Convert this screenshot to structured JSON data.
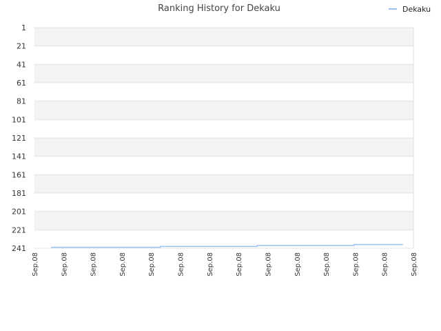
{
  "chart_data": {
    "type": "line",
    "title": "Ranking History for Dekaku",
    "xlabel": "",
    "ylabel": "",
    "y_inverted": true,
    "ylim": [
      1,
      241
    ],
    "y_ticks": [
      1,
      21,
      41,
      61,
      81,
      101,
      121,
      141,
      161,
      181,
      201,
      221,
      241
    ],
    "x_tick_labels": [
      "Sep.08",
      "Sep.08",
      "Sep.08",
      "Sep.08",
      "Sep.08",
      "Sep.08",
      "Sep.08",
      "Sep.08",
      "Sep.08",
      "Sep.08",
      "Sep.08",
      "Sep.08",
      "Sep.08",
      "Sep.08"
    ],
    "grid": true,
    "legend_position": "top-right",
    "series": [
      {
        "name": "Dekaku",
        "color": "#99c2f0",
        "step": true,
        "x": [
          0.57,
          4.32,
          7.64,
          10.97,
          12.64
        ],
        "y": [
          240,
          239,
          238,
          237,
          237
        ]
      }
    ],
    "band_colors": [
      "#f3f3f3",
      "#ffffff"
    ]
  }
}
